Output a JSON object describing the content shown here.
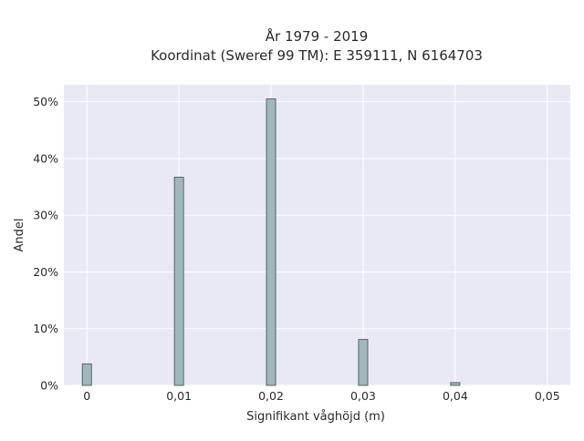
{
  "chart_data": {
    "type": "bar",
    "title": "År 1979 - 2019",
    "subtitle": "Koordinat (Sweref 99 TM): E 359111, N 6164703",
    "xlabel": "Signifikant våghöjd (m)",
    "ylabel": "Andel",
    "x": [
      0,
      0.01,
      0.02,
      0.03,
      0.04
    ],
    "values": [
      3.8,
      36.7,
      50.5,
      8.1,
      0.5
    ],
    "xlim": [
      -0.0025,
      0.0525
    ],
    "ylim": [
      0,
      53
    ],
    "xticks": [
      0,
      0.01,
      0.02,
      0.03,
      0.04,
      0.05
    ],
    "xtick_labels": [
      "0",
      "0,01",
      "0,02",
      "0,03",
      "0,04",
      "0,05"
    ],
    "yticks": [
      0,
      10,
      20,
      30,
      40,
      50
    ],
    "ytick_labels": [
      "0%",
      "10%",
      "20%",
      "30%",
      "40%",
      "50%"
    ],
    "bar_width": 0.001,
    "grid": true,
    "colors": {
      "plot_bg": "#e9e9f3",
      "grid": "#ffffff",
      "bar_fill": "#9fb8b8",
      "bar_stroke": "#3f4d4d"
    }
  }
}
